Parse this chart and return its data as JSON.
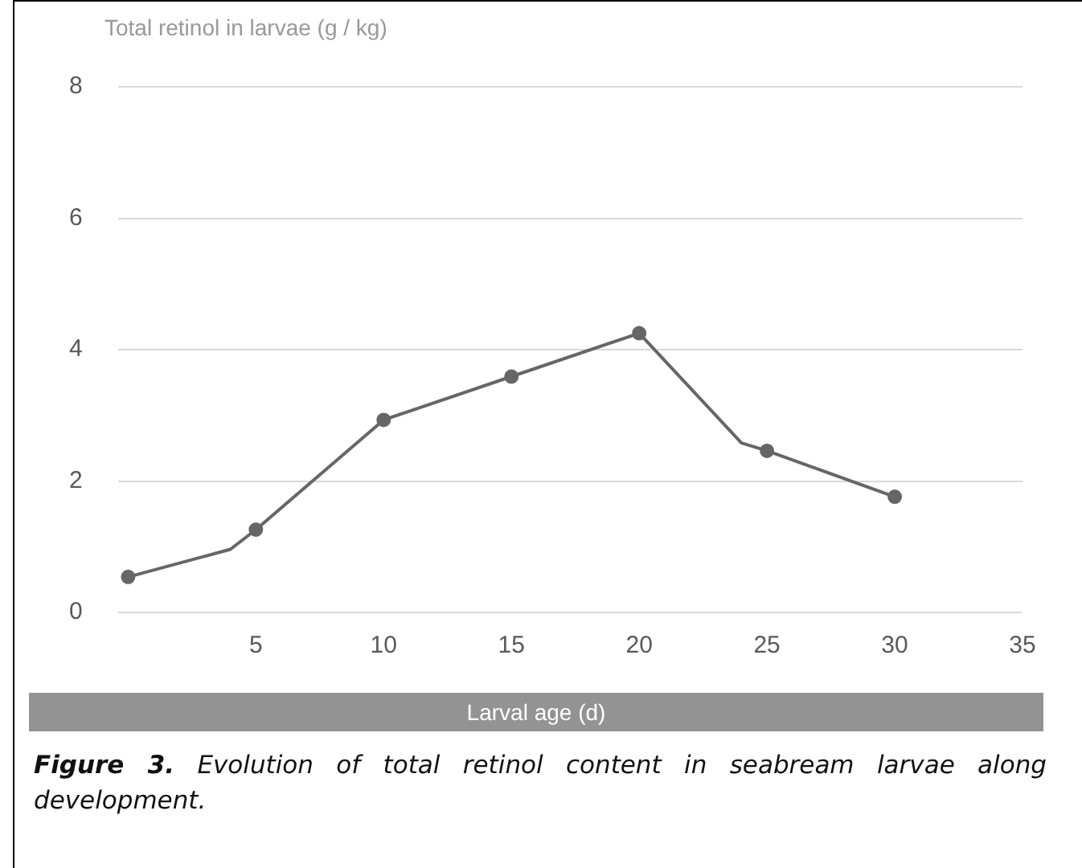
{
  "chart_data": {
    "type": "line",
    "ylabel": "Total retinol in larvae (g / kg)",
    "xlabel": "Larval age (d)",
    "annotations": [
      "Figure 3. Evolution of total retinol content in seabream larvae along development."
    ],
    "xlim": [
      -0.4,
      35
    ],
    "xticks": [
      5,
      10,
      15,
      20,
      25,
      30,
      35
    ],
    "ylim": [
      0,
      8
    ],
    "yticks": [
      0,
      2,
      4,
      6,
      8
    ],
    "grid": "y",
    "series": [
      {
        "color": "#666666",
        "marker": "none",
        "x": [
          0,
          4,
          5,
          10,
          15,
          20,
          24,
          25,
          30
        ],
        "values": [
          0.54,
          0.96,
          1.26,
          2.93,
          3.59,
          4.25,
          2.58,
          2.46,
          1.76
        ]
      },
      {
        "type": "scatter",
        "color": "#666666",
        "marker": "circle",
        "x": [
          0,
          5,
          10,
          15,
          20,
          25,
          30
        ],
        "values": [
          0.54,
          1.26,
          2.93,
          3.59,
          4.25,
          2.46,
          1.76
        ]
      }
    ]
  }
}
